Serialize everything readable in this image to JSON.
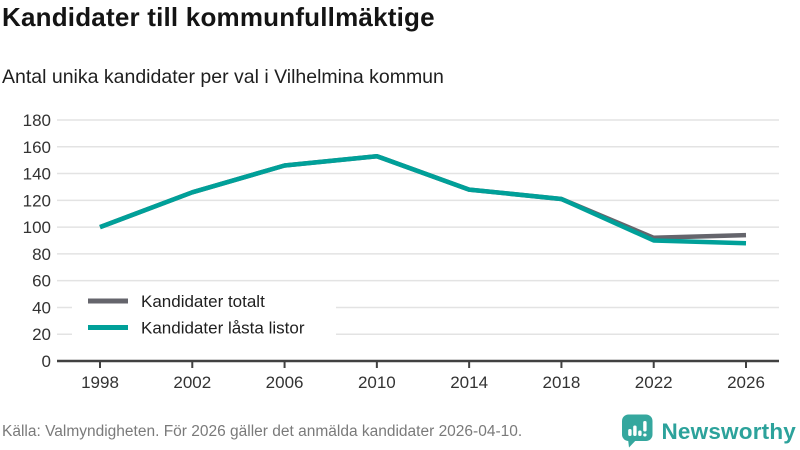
{
  "chart_data": {
    "type": "line",
    "title": "Kandidater till kommunfullmäktige",
    "subtitle": "Antal unika kandidater per val i Vilhelmina kommun",
    "categories": [
      "1998",
      "2002",
      "2006",
      "2010",
      "2014",
      "2018",
      "2022",
      "2026"
    ],
    "series": [
      {
        "name": "Kandidater totalt",
        "color": "#65656c",
        "values": [
          100,
          126,
          146,
          153,
          128,
          121,
          92,
          94
        ]
      },
      {
        "name": "Kandidater låsta listor",
        "color": "#00a099",
        "values": [
          100,
          126,
          146,
          153,
          128,
          121,
          90,
          88
        ]
      }
    ],
    "ylim": [
      0,
      180
    ],
    "yticks": [
      0,
      20,
      40,
      60,
      80,
      100,
      120,
      140,
      160,
      180
    ],
    "grid": "horizontal",
    "legend_position": "inside-bottom-left",
    "colors": {
      "grid": "#e3e3e3",
      "axis": "#414141",
      "tick_text": "#333333"
    }
  },
  "footer": {
    "source": "Källa: Valmyndigheten. För 2026 gäller det anmälda kandidater 2026-04-10.",
    "brand": "Newsworthy",
    "brand_color": "#31a69d"
  }
}
